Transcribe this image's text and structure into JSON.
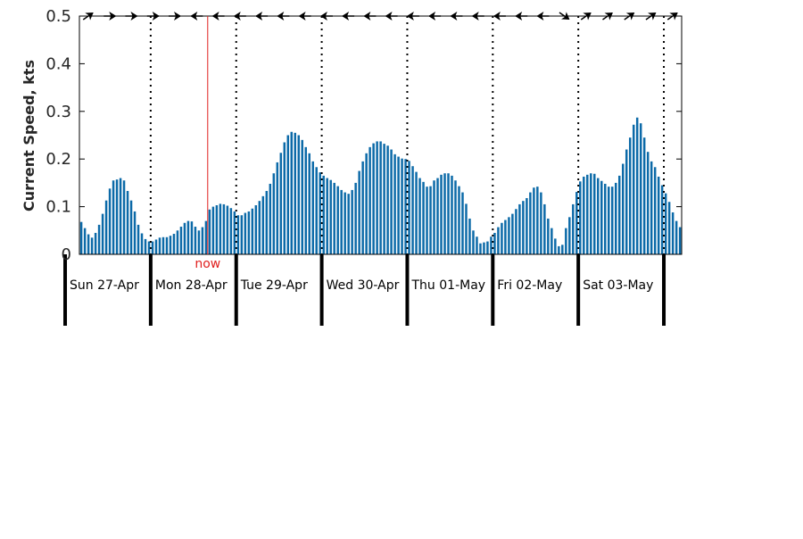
{
  "chart_data": {
    "type": "bar",
    "ylabel": "Current Speed, kts",
    "ylim": [
      0,
      0.5
    ],
    "yticks": [
      {
        "value": 0,
        "label": "0"
      },
      {
        "value": 0.1,
        "label": "0.1"
      },
      {
        "value": 0.2,
        "label": "0.2"
      },
      {
        "value": 0.3,
        "label": "0.3"
      },
      {
        "value": 0.4,
        "label": "0.4"
      },
      {
        "value": 0.5,
        "label": "0.5"
      }
    ],
    "hours_per_bar": 1,
    "start_label": "Sun 27-Apr",
    "day_labels": [
      "Sun 27-Apr",
      "Mon 28-Apr",
      "Tue 29-Apr",
      "Wed 30-Apr",
      "Thu 01-May",
      "Fri 02-May",
      "Sat 03-May"
    ],
    "now_label": "now",
    "now_hour": 36,
    "values": [
      0.068,
      0.055,
      0.042,
      0.035,
      0.045,
      0.062,
      0.085,
      0.113,
      0.138,
      0.155,
      0.157,
      0.16,
      0.155,
      0.133,
      0.113,
      0.09,
      0.062,
      0.044,
      0.032,
      0.027,
      0.027,
      0.031,
      0.035,
      0.036,
      0.036,
      0.039,
      0.043,
      0.05,
      0.058,
      0.066,
      0.07,
      0.069,
      0.058,
      0.05,
      0.057,
      0.07,
      0.094,
      0.1,
      0.103,
      0.106,
      0.105,
      0.102,
      0.097,
      0.09,
      0.082,
      0.082,
      0.087,
      0.09,
      0.096,
      0.103,
      0.112,
      0.122,
      0.133,
      0.148,
      0.17,
      0.193,
      0.213,
      0.235,
      0.25,
      0.257,
      0.255,
      0.25,
      0.24,
      0.225,
      0.212,
      0.195,
      0.183,
      0.172,
      0.165,
      0.16,
      0.156,
      0.15,
      0.143,
      0.135,
      0.13,
      0.127,
      0.135,
      0.15,
      0.175,
      0.195,
      0.212,
      0.225,
      0.233,
      0.237,
      0.237,
      0.232,
      0.228,
      0.22,
      0.21,
      0.205,
      0.201,
      0.2,
      0.196,
      0.185,
      0.173,
      0.16,
      0.152,
      0.142,
      0.143,
      0.155,
      0.16,
      0.167,
      0.17,
      0.17,
      0.165,
      0.155,
      0.143,
      0.13,
      0.106,
      0.075,
      0.05,
      0.037,
      0.023,
      0.025,
      0.027,
      0.037,
      0.045,
      0.057,
      0.066,
      0.072,
      0.078,
      0.085,
      0.095,
      0.105,
      0.112,
      0.118,
      0.13,
      0.14,
      0.142,
      0.13,
      0.105,
      0.075,
      0.055,
      0.033,
      0.017,
      0.02,
      0.055,
      0.078,
      0.105,
      0.131,
      0.153,
      0.163,
      0.167,
      0.17,
      0.169,
      0.16,
      0.154,
      0.148,
      0.142,
      0.142,
      0.15,
      0.165,
      0.19,
      0.22,
      0.245,
      0.272,
      0.287,
      0.275,
      0.245,
      0.215,
      0.195,
      0.183,
      0.163,
      0.145,
      0.128,
      0.11,
      0.088,
      0.07,
      0.057
    ],
    "direction_arrows": [
      "up-right",
      "right",
      "right",
      "right",
      "right",
      "left",
      "left",
      "left",
      "left",
      "left",
      "left",
      "left",
      "left",
      "left",
      "left",
      "left",
      "left",
      "left",
      "left",
      "left",
      "left",
      "left",
      "down-right",
      "up-right",
      "up-right",
      "up-right",
      "up-right",
      "up-right"
    ],
    "colors": {
      "bar": "#0c6aa8",
      "now": "#e0201f",
      "axis": "#000000"
    }
  }
}
